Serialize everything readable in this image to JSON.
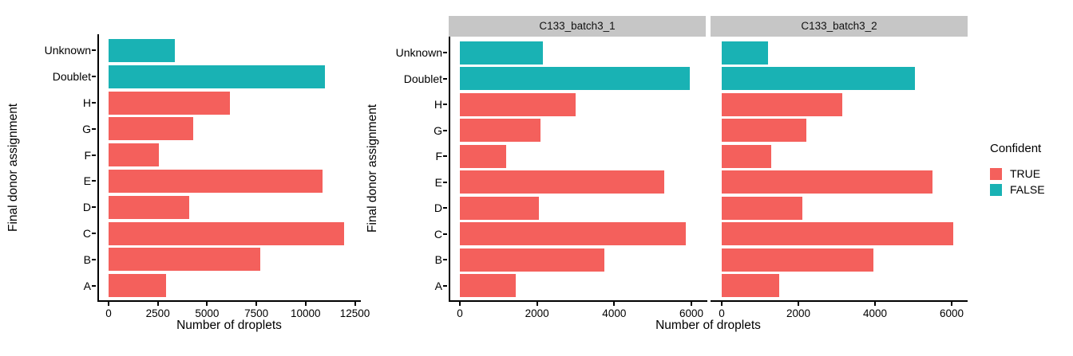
{
  "background": "#ffffff",
  "colors": {
    "confident_true": "#F4605C",
    "confident_false": "#19B2B4",
    "strip_bg": "#C6C6C6",
    "axis": "#000000"
  },
  "legend": {
    "title": "Confident",
    "items": [
      {
        "label": "TRUE",
        "color": "#F4605C"
      },
      {
        "label": "FALSE",
        "color": "#19B2B4"
      }
    ]
  },
  "chart_data": [
    {
      "type": "bar",
      "orientation": "horizontal",
      "facet": null,
      "title": "",
      "ylabel": "Final donor assignment",
      "xlabel": "Number of droplets",
      "legend_by": "Confident",
      "categories": [
        "Unknown",
        "Doublet",
        "H",
        "G",
        "F",
        "E",
        "D",
        "C",
        "B",
        "A"
      ],
      "confident": [
        "FALSE",
        "FALSE",
        "TRUE",
        "TRUE",
        "TRUE",
        "TRUE",
        "TRUE",
        "TRUE",
        "TRUE",
        "TRUE"
      ],
      "values": [
        3350,
        11000,
        6150,
        4300,
        2550,
        10850,
        4100,
        11950,
        7700,
        2900
      ],
      "xticks": [
        0,
        2500,
        5000,
        7500,
        10000,
        12500
      ],
      "xlim": [
        0,
        12800
      ],
      "grid": false,
      "legend_position": "right"
    },
    {
      "type": "bar",
      "orientation": "horizontal",
      "facet": "C133_batch3_1",
      "title": "",
      "ylabel": "Final donor assignment",
      "xlabel": "Number of droplets",
      "legend_by": "Confident",
      "categories": [
        "Unknown",
        "Doublet",
        "H",
        "G",
        "F",
        "E",
        "D",
        "C",
        "B",
        "A"
      ],
      "confident": [
        "FALSE",
        "FALSE",
        "TRUE",
        "TRUE",
        "TRUE",
        "TRUE",
        "TRUE",
        "TRUE",
        "TRUE",
        "TRUE"
      ],
      "values": [
        2150,
        5950,
        3000,
        2100,
        1200,
        5300,
        2050,
        5850,
        3750,
        1450
      ],
      "xticks": [
        0,
        2000,
        4000,
        6000
      ],
      "xlim": [
        0,
        6400
      ],
      "grid": false,
      "legend_position": "right"
    },
    {
      "type": "bar",
      "orientation": "horizontal",
      "facet": "C133_batch3_2",
      "title": "",
      "ylabel": "Final donor assignment",
      "xlabel": "Number of droplets",
      "legend_by": "Confident",
      "categories": [
        "Unknown",
        "Doublet",
        "H",
        "G",
        "F",
        "E",
        "D",
        "C",
        "B",
        "A"
      ],
      "confident": [
        "FALSE",
        "FALSE",
        "TRUE",
        "TRUE",
        "TRUE",
        "TRUE",
        "TRUE",
        "TRUE",
        "TRUE",
        "TRUE"
      ],
      "values": [
        1200,
        5050,
        3150,
        2200,
        1300,
        5500,
        2100,
        6050,
        3950,
        1500
      ],
      "xticks": [
        0,
        2000,
        4000,
        6000
      ],
      "xlim": [
        0,
        6400
      ],
      "grid": false,
      "legend_position": "right"
    }
  ]
}
